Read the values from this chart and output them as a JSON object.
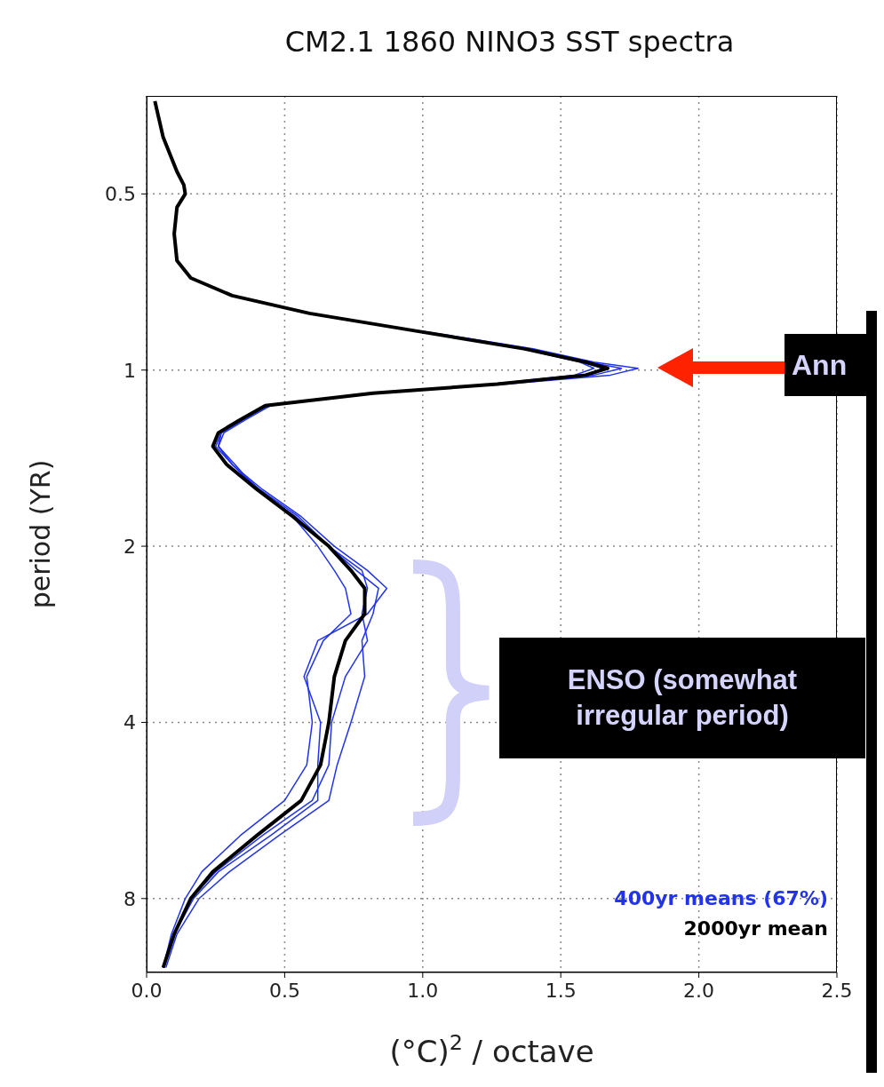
{
  "chart_data": {
    "type": "line",
    "title": "CM2.1 1860 NINO3 SST spectra",
    "xlabel": "(°C)$^{2}$ / octave",
    "ylabel": "period (YR)",
    "series": [
      {
        "name": "400yr means (67%)",
        "color": "#2233ee",
        "x": [
          1.0,
          1.4,
          1.62,
          1.78,
          1.68,
          1.3,
          0.84,
          0.44,
          0.35,
          0.27,
          0.26,
          0.31,
          0.42,
          0.56,
          0.68,
          0.8,
          0.87,
          0.8,
          0.62,
          0.57,
          0.63,
          0.62,
          0.62,
          0.45,
          0.26,
          0.17,
          0.1,
          0.06
        ],
        "values": [
          0.858,
          0.92,
          0.969,
          0.993,
          1.02,
          1.057,
          1.095,
          1.15,
          1.215,
          1.28,
          1.35,
          1.45,
          1.6,
          1.78,
          2.0,
          2.2,
          2.36,
          2.61,
          2.9,
          3.34,
          4.0,
          4.73,
          5.44,
          6.24,
          7.2,
          8.0,
          9.2,
          10.5
        ]
      },
      {
        "color": "#2233ee",
        "x": [
          0.99,
          1.38,
          1.6,
          1.72,
          1.62,
          1.28,
          0.82,
          0.44,
          0.35,
          0.27,
          0.25,
          0.31,
          0.41,
          0.55,
          0.66,
          0.76,
          0.84,
          0.82,
          0.78,
          0.79,
          0.74,
          0.69,
          0.66,
          0.48,
          0.3,
          0.19,
          0.11,
          0.07
        ],
        "values": [
          0.858,
          0.92,
          0.969,
          0.993,
          1.02,
          1.057,
          1.095,
          1.15,
          1.215,
          1.28,
          1.35,
          1.45,
          1.6,
          1.78,
          2.0,
          2.2,
          2.36,
          2.61,
          2.9,
          3.34,
          4.0,
          4.73,
          5.44,
          6.24,
          7.2,
          8.0,
          9.2,
          10.5
        ]
      },
      {
        "color": "#2233ee",
        "x": [
          0.98,
          1.36,
          1.57,
          1.62,
          1.55,
          1.25,
          0.8,
          0.44,
          0.35,
          0.27,
          0.26,
          0.31,
          0.4,
          0.53,
          0.62,
          0.68,
          0.72,
          0.74,
          0.64,
          0.58,
          0.6,
          0.58,
          0.5,
          0.34,
          0.2,
          0.14,
          0.09,
          0.06
        ],
        "values": [
          0.858,
          0.92,
          0.969,
          0.993,
          1.02,
          1.057,
          1.095,
          1.15,
          1.215,
          1.28,
          1.35,
          1.45,
          1.6,
          1.78,
          2.0,
          2.2,
          2.36,
          2.61,
          2.9,
          3.34,
          4.0,
          4.73,
          5.44,
          6.24,
          7.2,
          8.0,
          9.2,
          10.5
        ]
      },
      {
        "color": "#2233ee",
        "x": [
          0.98,
          1.37,
          1.58,
          1.65,
          1.6,
          1.27,
          0.81,
          0.45,
          0.36,
          0.28,
          0.26,
          0.32,
          0.4,
          0.54,
          0.66,
          0.78,
          0.8,
          0.78,
          0.8,
          0.72,
          0.67,
          0.66,
          0.6,
          0.42,
          0.25,
          0.16,
          0.1,
          0.06
        ],
        "values": [
          0.858,
          0.92,
          0.969,
          0.993,
          1.02,
          1.057,
          1.095,
          1.15,
          1.215,
          1.28,
          1.35,
          1.45,
          1.6,
          1.78,
          2.0,
          2.2,
          2.36,
          2.61,
          2.9,
          3.34,
          4.0,
          4.73,
          5.44,
          6.24,
          7.2,
          8.0,
          9.2,
          10.5
        ]
      },
      {
        "name": "2000yr mean",
        "color": "#000000",
        "x": [
          0.03,
          0.06,
          0.11,
          0.135,
          0.14,
          0.11,
          0.1,
          0.11,
          0.16,
          0.31,
          0.59,
          0.98,
          1.37,
          1.59,
          1.67,
          1.59,
          1.27,
          0.82,
          0.43,
          0.34,
          0.26,
          0.24,
          0.29,
          0.4,
          0.53,
          0.66,
          0.74,
          0.79,
          0.79,
          0.72,
          0.68,
          0.66,
          0.63,
          0.56,
          0.4,
          0.24,
          0.16,
          0.1,
          0.06
        ],
        "values": [
          0.347,
          0.4,
          0.458,
          0.483,
          0.5,
          0.527,
          0.585,
          0.65,
          0.696,
          0.746,
          0.8,
          0.858,
          0.92,
          0.969,
          0.993,
          1.02,
          1.057,
          1.095,
          1.15,
          1.215,
          1.28,
          1.35,
          1.45,
          1.6,
          1.78,
          2.0,
          2.2,
          2.36,
          2.61,
          2.9,
          3.34,
          4.0,
          4.73,
          5.44,
          6.24,
          7.2,
          8.0,
          9.2,
          10.5
        ]
      }
    ],
    "xlim": [
      0,
      2.5
    ],
    "xticks": [
      {
        "value": 0,
        "label": "0.0"
      },
      {
        "value": 0.5,
        "label": "0.5"
      },
      {
        "value": 1,
        "label": "1.0"
      },
      {
        "value": 1.5,
        "label": "1.5"
      },
      {
        "value": 2,
        "label": "2.0"
      },
      {
        "value": 2.5,
        "label": "2.5"
      }
    ],
    "ylim": [
      10.7,
      0.34
    ],
    "yticks": [
      0.5,
      1,
      2,
      4,
      8
    ],
    "log": "y",
    "grid": true,
    "legend": "bottom right",
    "marker": "none",
    "line_style": "solid",
    "annotations": [
      "Ann",
      "ENSO (somewhat irregular period)"
    ]
  }
}
